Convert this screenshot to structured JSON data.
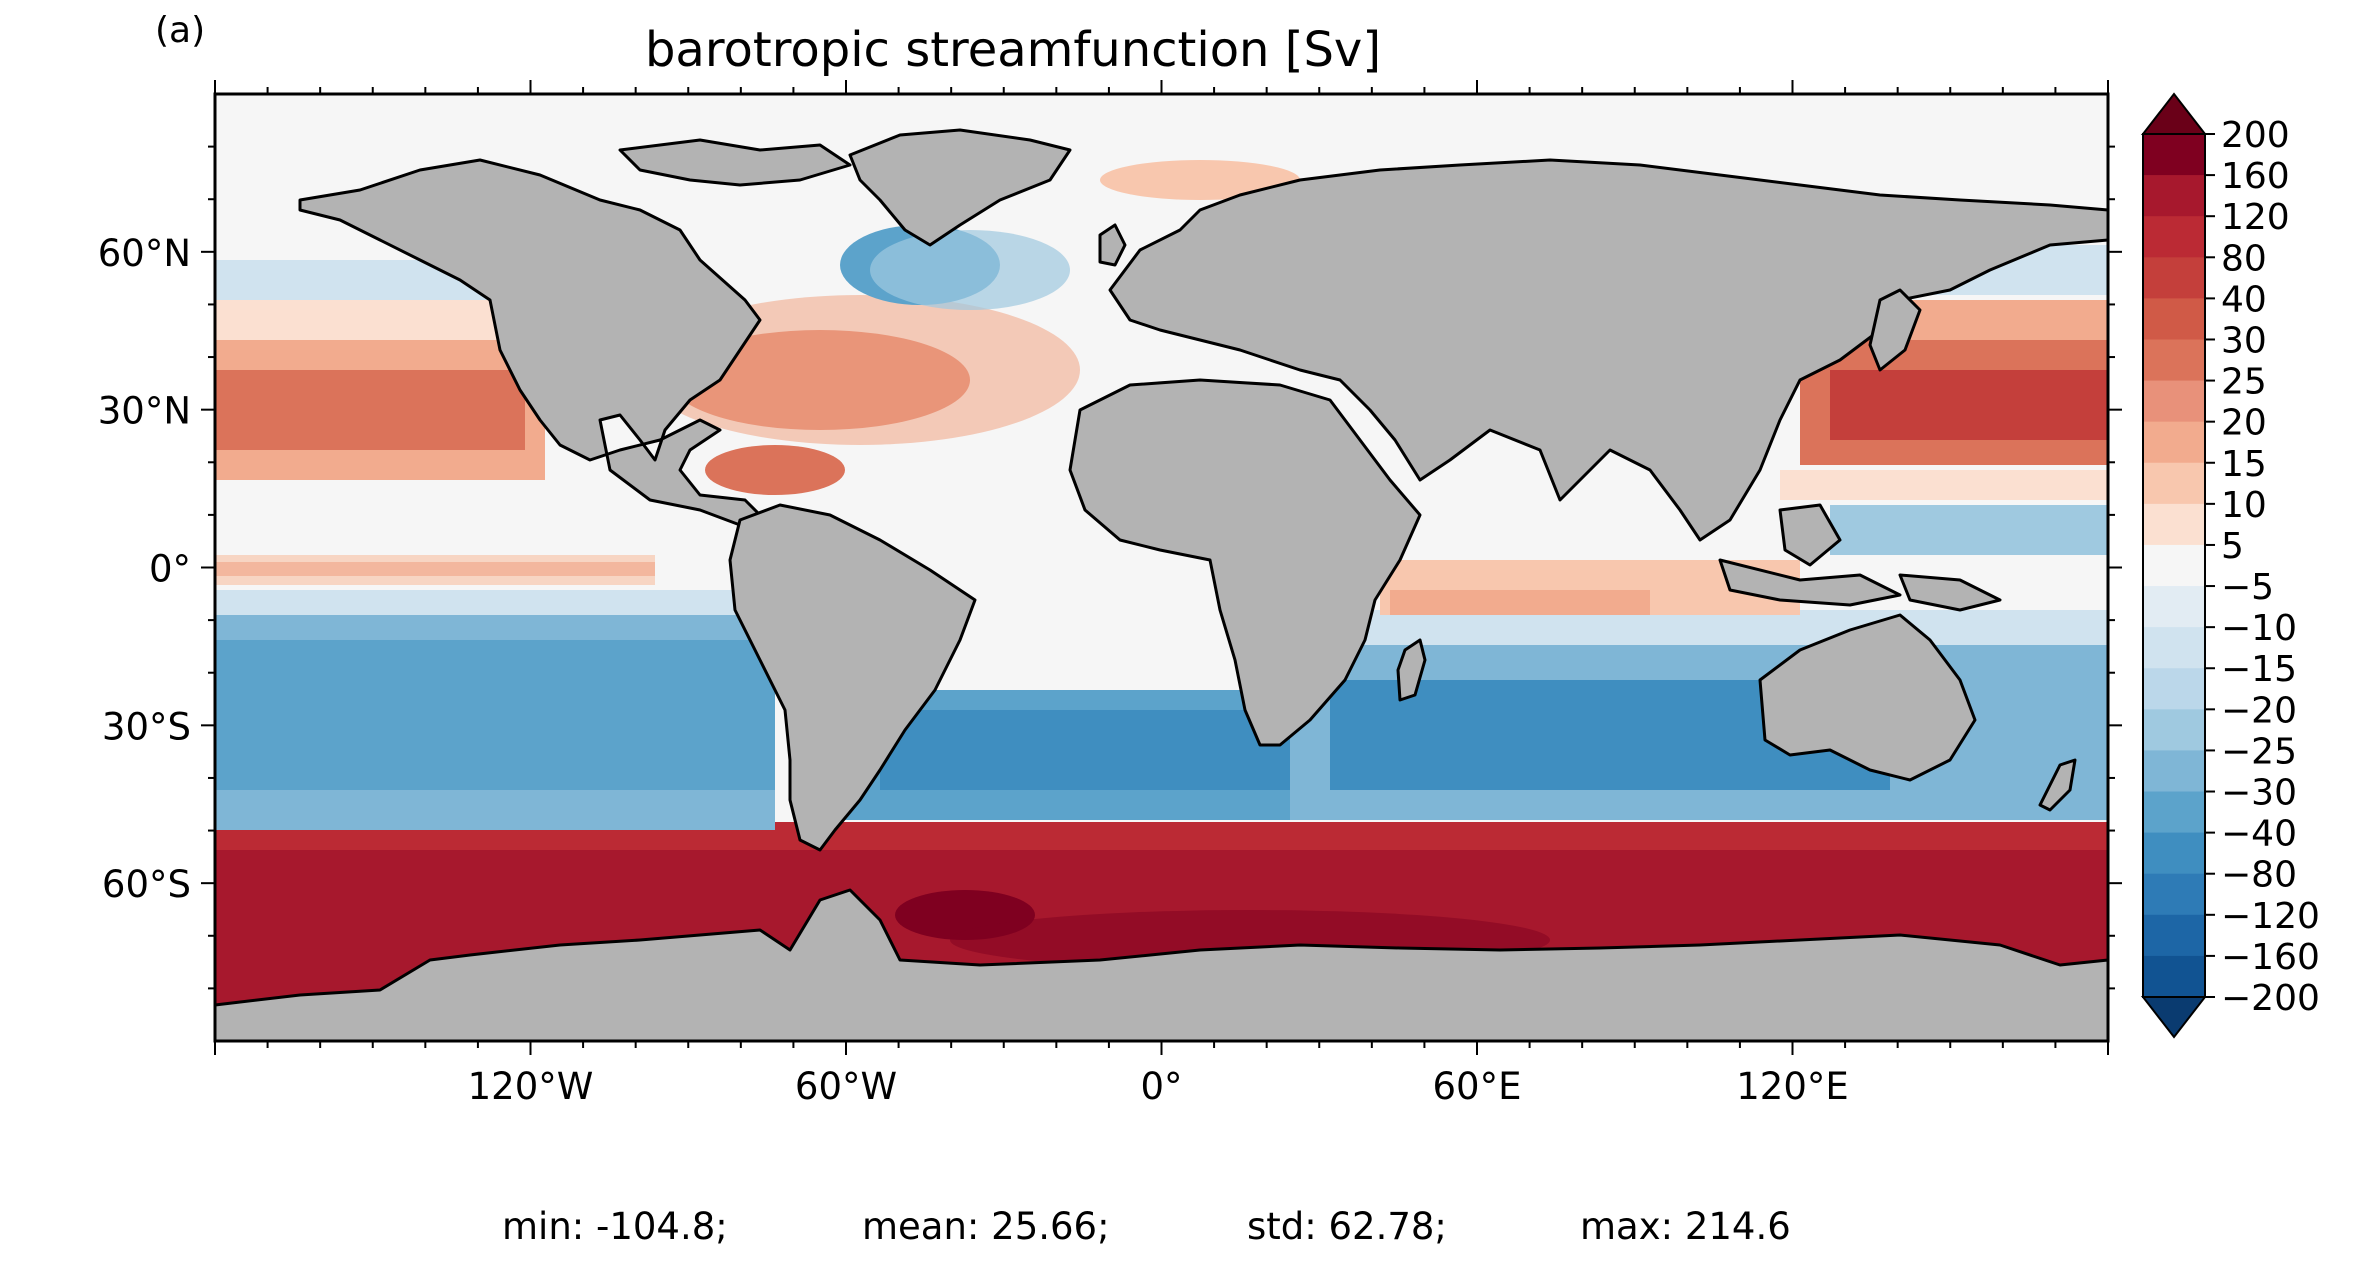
{
  "panel_label": "(a)",
  "title": "barotropic streamfunction [Sv]",
  "map": {
    "projection": "PlateCarree",
    "lon_range": [
      -180,
      180
    ],
    "lat_range": [
      -90,
      90
    ],
    "land_color": "#b3b3b3",
    "coastline_color": "#000000",
    "lat_ticks": [
      {
        "value": 60,
        "label": "60°N"
      },
      {
        "value": 30,
        "label": "30°N"
      },
      {
        "value": 0,
        "label": "0°"
      },
      {
        "value": -30,
        "label": "30°S"
      },
      {
        "value": -60,
        "label": "60°S"
      }
    ],
    "lon_ticks": [
      {
        "value": -120,
        "label": "120°W"
      },
      {
        "value": -60,
        "label": "60°W"
      },
      {
        "value": 0,
        "label": "0°"
      },
      {
        "value": 60,
        "label": "60°E"
      },
      {
        "value": 120,
        "label": "120°E"
      }
    ]
  },
  "colorbar": {
    "extend": "both",
    "levels": [
      "200",
      "160",
      "120",
      "80",
      "40",
      "30",
      "25",
      "20",
      "15",
      "10",
      "5",
      "−5",
      "−10",
      "−15",
      "−20",
      "−25",
      "−30",
      "−40",
      "−80",
      "−120",
      "−160",
      "−200"
    ],
    "colors": [
      "#7f0020",
      "#a7182d",
      "#bb2a34",
      "#c43f3b",
      "#d05a47",
      "#db735a",
      "#e8917a",
      "#f2ab8e",
      "#f8c7ae",
      "#fbe0d1",
      "#f6f6f6",
      "#e2ecf3",
      "#d0e3ef",
      "#bbd7ea",
      "#9fc9e0",
      "#7fb6d6",
      "#5ca3cb",
      "#3f8ec0",
      "#2e7bb6",
      "#1d66a6",
      "#115392"
    ],
    "over_color": "#6a0018",
    "under_color": "#0a3b70"
  },
  "stats": {
    "min": "min: -104.8;",
    "mean": "mean: 25.66;",
    "std": "std: 62.78;",
    "max": "max: 214.6"
  }
}
